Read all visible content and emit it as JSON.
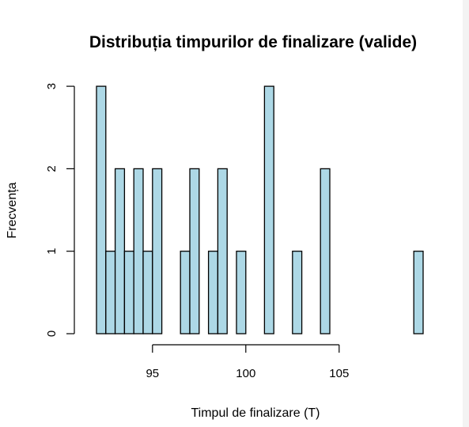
{
  "chart_data": {
    "type": "bar",
    "title": "Distribuția timpurilor de finalizare (valide)",
    "xlabel": "Timpul de finalizare (T)",
    "ylabel": "Frecvența",
    "x_ticks": [
      95,
      100,
      105
    ],
    "y_ticks": [
      0,
      1,
      2,
      3
    ],
    "xlim": [
      92,
      109.5
    ],
    "ylim": [
      0,
      3
    ],
    "bin_width": 0.5,
    "bar_color": "#add8e6",
    "bins": [
      {
        "x0": 92.0,
        "count": 3
      },
      {
        "x0": 92.5,
        "count": 1
      },
      {
        "x0": 93.0,
        "count": 2
      },
      {
        "x0": 93.5,
        "count": 1
      },
      {
        "x0": 94.0,
        "count": 2
      },
      {
        "x0": 94.5,
        "count": 1
      },
      {
        "x0": 95.0,
        "count": 2
      },
      {
        "x0": 96.5,
        "count": 1
      },
      {
        "x0": 97.0,
        "count": 2
      },
      {
        "x0": 98.0,
        "count": 1
      },
      {
        "x0": 98.5,
        "count": 2
      },
      {
        "x0": 99.5,
        "count": 1
      },
      {
        "x0": 101.0,
        "count": 3
      },
      {
        "x0": 102.5,
        "count": 1
      },
      {
        "x0": 104.0,
        "count": 2
      },
      {
        "x0": 109.0,
        "count": 1
      }
    ]
  }
}
